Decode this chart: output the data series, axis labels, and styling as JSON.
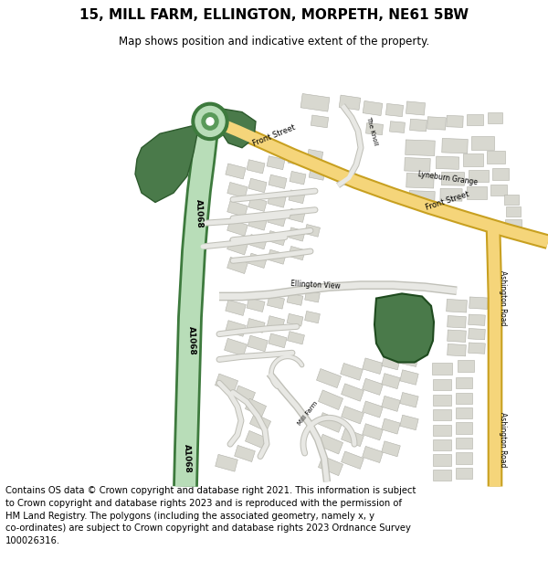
{
  "title": "15, MILL FARM, ELLINGTON, MORPETH, NE61 5BW",
  "subtitle": "Map shows position and indicative extent of the property.",
  "footer": "Contains OS data © Crown copyright and database right 2021. This information is subject\nto Crown copyright and database rights 2023 and is reproduced with the permission of\nHM Land Registry. The polygons (including the associated geometry, namely x, y\nco-ordinates) are subject to Crown copyright and database rights 2023 Ordnance Survey\n100026316.",
  "bg_color": "#ffffff",
  "road_yellow": "#f5d57a",
  "road_yellow_border": "#c8a020",
  "a1068_dark": "#3d7a3d",
  "a1068_light_fill": "#b8ddb8",
  "building_color": "#d8d8d0",
  "building_outline": "#b0b0a8",
  "highlight_green": "#4a7a4a",
  "road_gray_fill": "#e8e8e4",
  "road_gray_border": "#c0c0b8"
}
